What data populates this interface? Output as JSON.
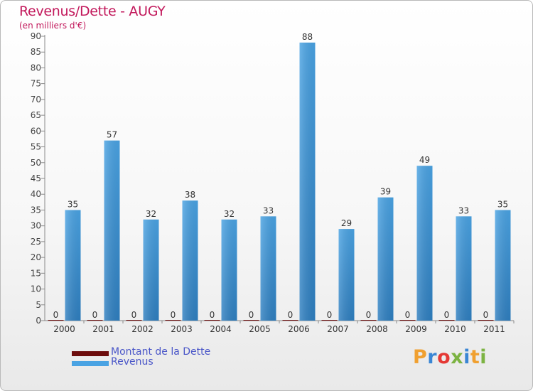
{
  "title": "Revenus/Dette - AUGY",
  "subtitle": "(en milliers d'€)",
  "brand": {
    "text": "Proxiti",
    "colors": [
      "#f0a030",
      "#3a86d4",
      "#e53935",
      "#7cb342",
      "#3a86d4",
      "#f0a030",
      "#7cb342"
    ]
  },
  "colors": {
    "debt": "#6d0d0d",
    "revenue": "#4aa3e3",
    "revenue_dark": "#2f7fc0",
    "title": "#c2185b",
    "legend_text": "#4a56c8"
  },
  "chart_data": {
    "type": "bar",
    "title": "Revenus/Dette - AUGY",
    "subtitle": "(en milliers d'€)",
    "xlabel": "",
    "ylabel": "",
    "ylim": [
      0,
      90
    ],
    "ytick_step": 5,
    "grid": false,
    "legend_position": "bottom-left",
    "categories": [
      "2000",
      "2001",
      "2002",
      "2003",
      "2004",
      "2005",
      "2006",
      "2007",
      "2008",
      "2009",
      "2010",
      "2011"
    ],
    "series": [
      {
        "name": "Montant de la Dette",
        "values": [
          0,
          0,
          0,
          0,
          0,
          0,
          0,
          0,
          0,
          0,
          0,
          0
        ]
      },
      {
        "name": "Revenus",
        "values": [
          35,
          57,
          32,
          38,
          32,
          33,
          88,
          29,
          39,
          49,
          33,
          35
        ]
      }
    ]
  }
}
